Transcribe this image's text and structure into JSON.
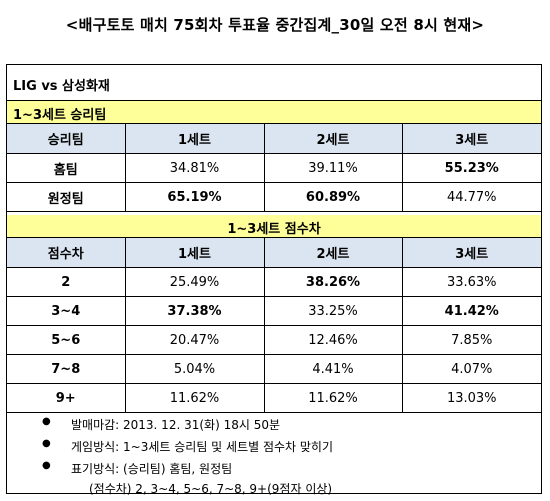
{
  "title": "<배구토토 매치 75회차 투표율 중간집계_30일 오전 8시 현재>",
  "match": "LIG vs 삼성화재",
  "section1": {
    "header": "1~3세트 승리팀",
    "columns": [
      "승리팀",
      "1세트",
      "2세트",
      "3세트"
    ],
    "rows": [
      {
        "label": "홈팀",
        "values": [
          "34.81%",
          "39.11%",
          "55.23%"
        ],
        "bold": [
          false,
          false,
          true
        ]
      },
      {
        "label": "원정팀",
        "values": [
          "65.19%",
          "60.89%",
          "44.77%"
        ],
        "bold": [
          true,
          true,
          false
        ]
      }
    ]
  },
  "section2": {
    "header": "1~3세트 점수차",
    "columns": [
      "점수차",
      "1세트",
      "2세트",
      "3세트"
    ],
    "rows": [
      {
        "label": "2",
        "values": [
          "25.49%",
          "38.26%",
          "33.63%"
        ],
        "bold": [
          false,
          true,
          false
        ]
      },
      {
        "label": "3~4",
        "values": [
          "37.38%",
          "33.25%",
          "41.42%"
        ],
        "bold": [
          true,
          false,
          true
        ]
      },
      {
        "label": "5~6",
        "values": [
          "20.47%",
          "12.46%",
          "7.85%"
        ],
        "bold": [
          false,
          false,
          false
        ]
      },
      {
        "label": "7~8",
        "values": [
          "5.04%",
          "4.41%",
          "4.07%"
        ],
        "bold": [
          false,
          false,
          false
        ]
      },
      {
        "label": "9+",
        "values": [
          "11.62%",
          "11.62%",
          "13.03%"
        ],
        "bold": [
          false,
          false,
          false
        ]
      }
    ]
  },
  "notes": {
    "bullet": "●",
    "items": [
      "발매마감: 2013. 12. 31(화) 18시 50분",
      "게임방식: 1~3세트 승리팀 및 세트별 점수차 맞히기",
      "표기방식: (승리팀) 홈팀, 원정팀"
    ],
    "continuation": "(점수차) 2, 3~4, 5~6, 7~8, 9+(9점자 이상)"
  }
}
